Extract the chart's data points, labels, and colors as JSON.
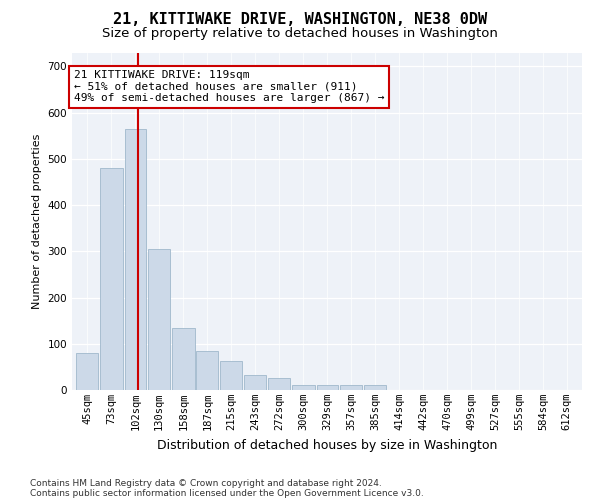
{
  "title": "21, KITTIWAKE DRIVE, WASHINGTON, NE38 0DW",
  "subtitle": "Size of property relative to detached houses in Washington",
  "xlabel": "Distribution of detached houses by size in Washington",
  "ylabel": "Number of detached properties",
  "footnote1": "Contains HM Land Registry data © Crown copyright and database right 2024.",
  "footnote2": "Contains public sector information licensed under the Open Government Licence v3.0.",
  "annotation_line1": "21 KITTIWAKE DRIVE: 119sqm",
  "annotation_line2": "← 51% of detached houses are smaller (911)",
  "annotation_line3": "49% of semi-detached houses are larger (867) →",
  "bar_color": "#ccd9e8",
  "bar_edge_color": "#a0b8cc",
  "redline_color": "#cc0000",
  "redline_x": 119,
  "categories": [
    "45sqm",
    "73sqm",
    "102sqm",
    "130sqm",
    "158sqm",
    "187sqm",
    "215sqm",
    "243sqm",
    "272sqm",
    "300sqm",
    "329sqm",
    "357sqm",
    "385sqm",
    "414sqm",
    "442sqm",
    "470sqm",
    "499sqm",
    "527sqm",
    "555sqm",
    "584sqm",
    "612sqm"
  ],
  "bin_edges": [
    45,
    73,
    102,
    130,
    158,
    187,
    215,
    243,
    272,
    300,
    329,
    357,
    385,
    414,
    442,
    470,
    499,
    527,
    555,
    584,
    612,
    640
  ],
  "values": [
    80,
    480,
    565,
    305,
    135,
    85,
    62,
    32,
    27,
    10,
    10,
    10,
    10,
    0,
    0,
    0,
    0,
    0,
    0,
    0,
    0
  ],
  "ylim": [
    0,
    730
  ],
  "yticks": [
    0,
    100,
    200,
    300,
    400,
    500,
    600,
    700
  ],
  "plot_bg": "#eef2f8",
  "title_fontsize": 11,
  "subtitle_fontsize": 9.5,
  "xlabel_fontsize": 9,
  "ylabel_fontsize": 8,
  "tick_fontsize": 7.5,
  "footnote_fontsize": 6.5,
  "annotation_fontsize": 8
}
